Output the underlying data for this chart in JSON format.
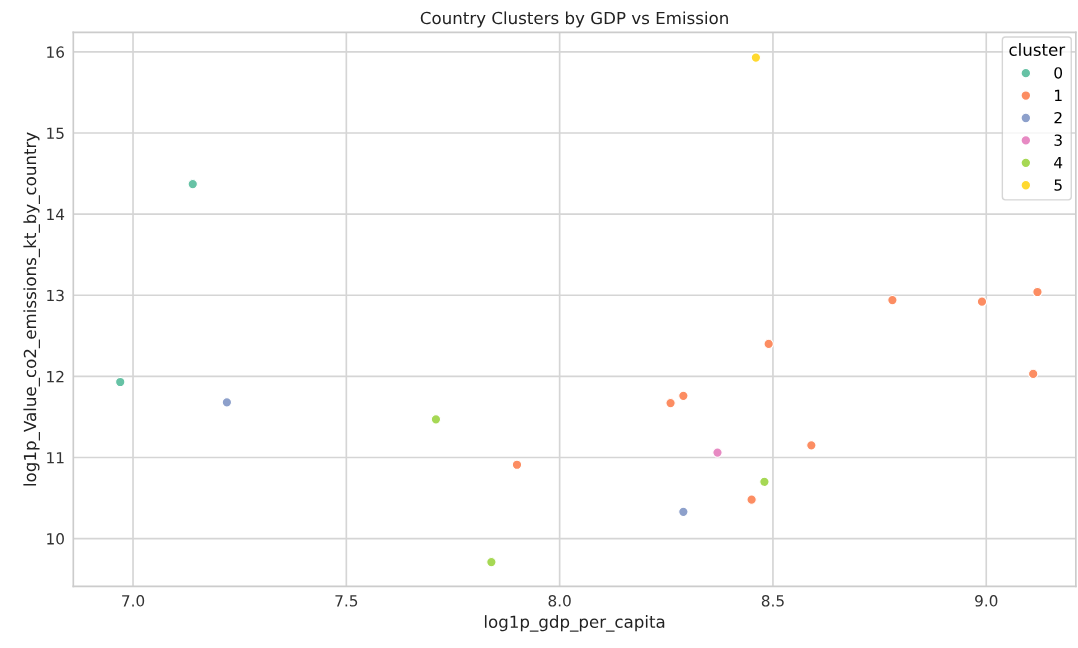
{
  "chart_data": {
    "type": "scatter",
    "title": "Country Clusters by GDP vs Emission",
    "xlabel": "log1p_gdp_per_capita",
    "ylabel": "log1p_Value_co2_emissions_kt_by_country",
    "legend_title": "cluster",
    "xlim": [
      6.86,
      9.21
    ],
    "xticks": [
      {
        "value": 7.0,
        "label": "7.0"
      },
      {
        "value": 7.5,
        "label": "7.5"
      },
      {
        "value": 8.0,
        "label": "8.0"
      },
      {
        "value": 8.5,
        "label": "8.5"
      },
      {
        "value": 9.0,
        "label": "9.0"
      }
    ],
    "ylim": [
      9.41,
      16.24
    ],
    "yticks": [
      10,
      11,
      12,
      13,
      14,
      15,
      16
    ],
    "grid": true,
    "legend": "top right",
    "marker": "circle",
    "series": [
      {
        "name": "0",
        "color": "#66c2a5",
        "x": [
          7.14,
          6.97
        ],
        "values": [
          14.37,
          11.93
        ]
      },
      {
        "name": "1",
        "color": "#fc8d62",
        "x": [
          7.9,
          8.78,
          8.99,
          9.12,
          8.49,
          9.11,
          8.29,
          8.26,
          8.59,
          8.45
        ],
        "values": [
          10.91,
          12.94,
          12.92,
          13.04,
          12.4,
          12.03,
          11.76,
          11.67,
          11.15,
          10.48
        ]
      },
      {
        "name": "2",
        "color": "#8da0cb",
        "x": [
          7.22,
          8.29
        ],
        "values": [
          11.68,
          10.33
        ]
      },
      {
        "name": "3",
        "color": "#e78ac3",
        "x": [
          8.37
        ],
        "values": [
          11.06
        ]
      },
      {
        "name": "4",
        "color": "#a6d854",
        "x": [
          7.71,
          7.84,
          8.48
        ],
        "values": [
          11.47,
          9.71,
          10.7
        ]
      },
      {
        "name": "5",
        "color": "#ffd92f",
        "x": [
          8.46
        ],
        "values": [
          15.93
        ]
      }
    ]
  }
}
